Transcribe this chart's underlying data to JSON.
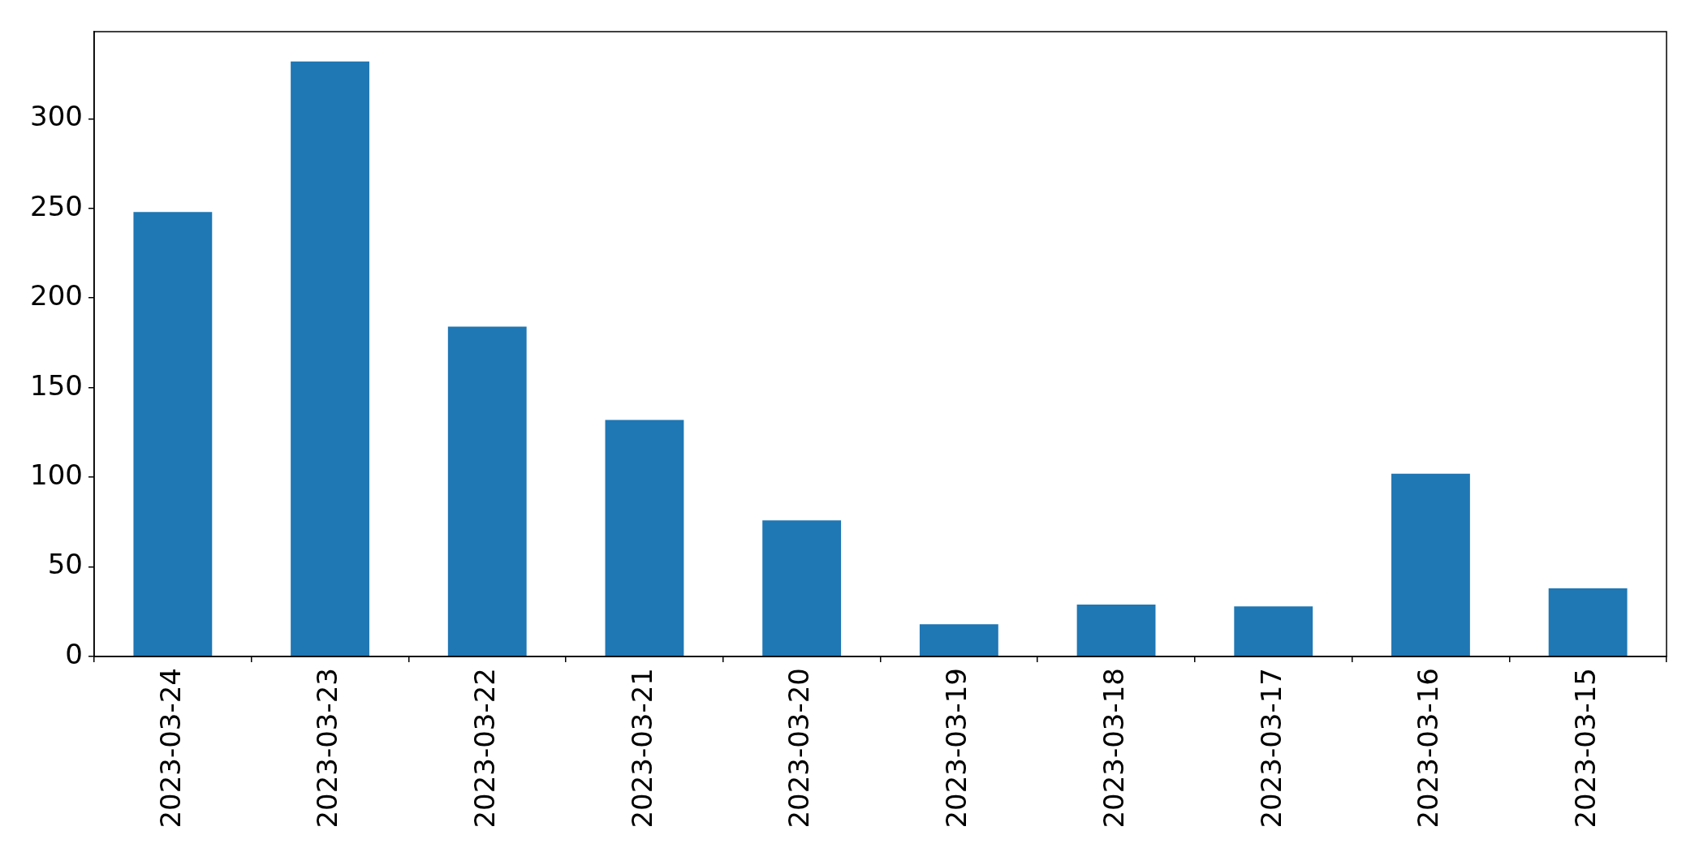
{
  "chart_data": {
    "type": "bar",
    "categories": [
      "2023-03-24",
      "2023-03-23",
      "2023-03-22",
      "2023-03-21",
      "2023-03-20",
      "2023-03-19",
      "2023-03-18",
      "2023-03-17",
      "2023-03-16",
      "2023-03-15"
    ],
    "values": [
      248,
      332,
      184,
      132,
      76,
      18,
      29,
      28,
      102,
      38
    ],
    "color": "#1f77b4",
    "ylim": [
      0,
      348.6
    ],
    "yticks": [
      0,
      50,
      100,
      150,
      200,
      250,
      300
    ]
  }
}
